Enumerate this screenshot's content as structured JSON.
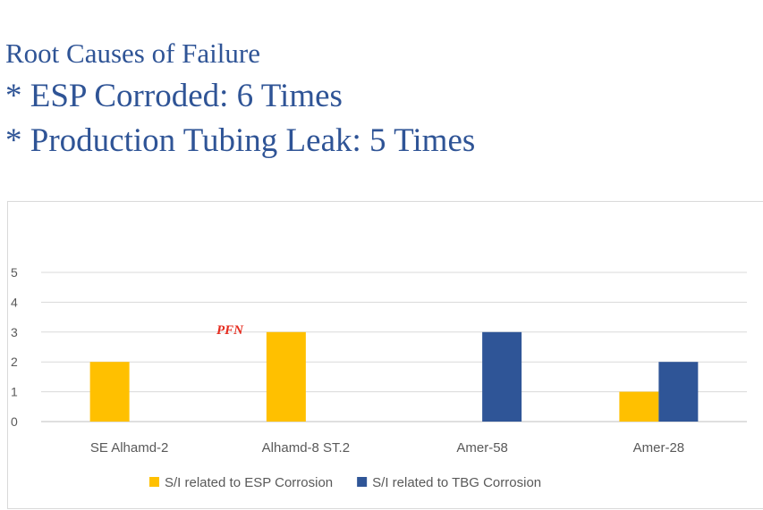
{
  "headlines": {
    "line1": "Root Causes of Failure",
    "line2": "* ESP Corroded: 6 Times",
    "line3": "* Production Tubing Leak: 5 Times"
  },
  "watermark": {
    "text": "PFN",
    "color": "#e52b1e"
  },
  "chart_data": {
    "type": "bar",
    "title": "",
    "xlabel": "",
    "ylabel": "",
    "ylim": [
      0,
      5
    ],
    "yticks": [
      0,
      1,
      2,
      3,
      4,
      5
    ],
    "grid": true,
    "legend_position": "bottom",
    "categories": [
      "SE Alhamd-2",
      "Alhamd-8 ST.2",
      "Amer-58",
      "Amer-28"
    ],
    "series": [
      {
        "name": "S/I related to ESP Corrosion",
        "color": "#ffc000",
        "values": [
          2,
          3,
          0,
          1
        ]
      },
      {
        "name": "S/I related to TBG Corrosion",
        "color": "#2f5597",
        "values": [
          0,
          0,
          3,
          2
        ]
      }
    ]
  }
}
